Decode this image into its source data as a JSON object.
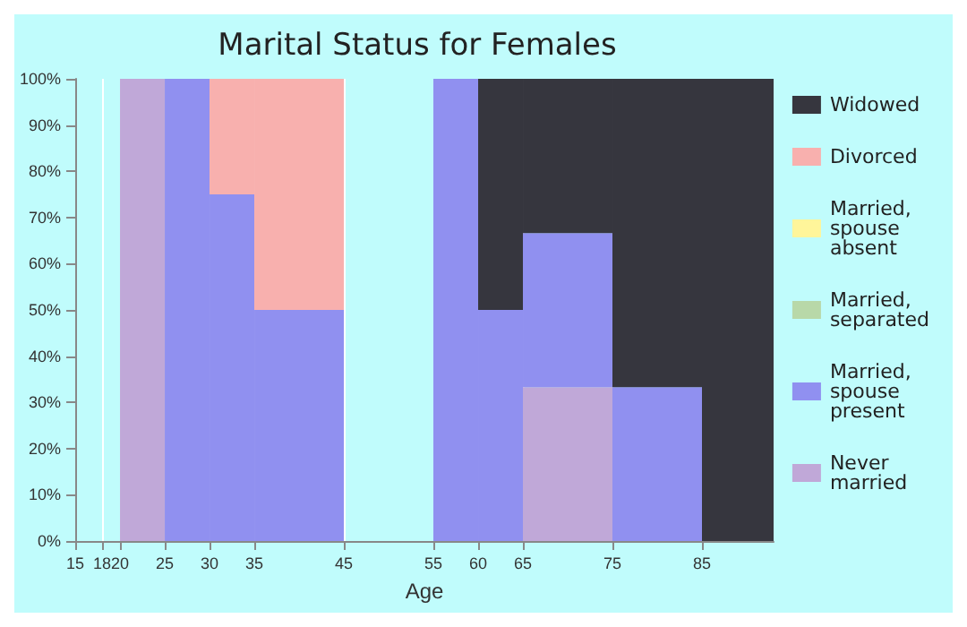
{
  "chart_data": {
    "type": "bar",
    "title": "Marital Status for Females",
    "xlabel": "Age",
    "stacked": true,
    "x": [
      22.5,
      27.5,
      32.5,
      40,
      50,
      57.5,
      62.5,
      70,
      80,
      89
    ],
    "xlim": [
      15,
      93
    ],
    "xticks": [
      15,
      18,
      20,
      25,
      30,
      35,
      45,
      55,
      60,
      65,
      75,
      85
    ],
    "ylim": [
      0,
      100
    ],
    "yticks": [
      {
        "value": 0,
        "label": "0%"
      },
      {
        "value": 10,
        "label": "10%"
      },
      {
        "value": 20,
        "label": "20%"
      },
      {
        "value": 30,
        "label": "30%"
      },
      {
        "value": 40,
        "label": "40%"
      },
      {
        "value": 50,
        "label": "50%"
      },
      {
        "value": 60,
        "label": "60%"
      },
      {
        "value": 70,
        "label": "70%"
      },
      {
        "value": 80,
        "label": "80%"
      },
      {
        "value": 90,
        "label": "90%"
      },
      {
        "value": 100,
        "label": "100%"
      }
    ],
    "grid": "x",
    "legend": "right",
    "series": [
      {
        "name": "Never married",
        "color": "#c0a8d8",
        "values": [
          100,
          null,
          null,
          null,
          null,
          null,
          null,
          33.3,
          null,
          null
        ]
      },
      {
        "name": "Married, spouse present",
        "color": "#9090f0",
        "values": [
          null,
          100,
          75,
          50,
          null,
          100,
          50,
          33.3,
          33.3,
          null
        ]
      },
      {
        "name": "Married, separated",
        "color": "#b8d8a8",
        "values": [
          null,
          null,
          null,
          null,
          null,
          null,
          null,
          null,
          null,
          null
        ]
      },
      {
        "name": "Married, spouse absent",
        "color": "#fff59a",
        "values": [
          null,
          null,
          null,
          null,
          null,
          null,
          null,
          null,
          null,
          null
        ]
      },
      {
        "name": "Divorced",
        "color": "#f8b0ae",
        "values": [
          null,
          null,
          25,
          50,
          null,
          null,
          null,
          null,
          null,
          null
        ]
      },
      {
        "name": "Widowed",
        "color": "#36363e",
        "values": [
          null,
          null,
          null,
          null,
          null,
          null,
          50,
          33.4,
          66.7,
          100
        ]
      }
    ]
  }
}
